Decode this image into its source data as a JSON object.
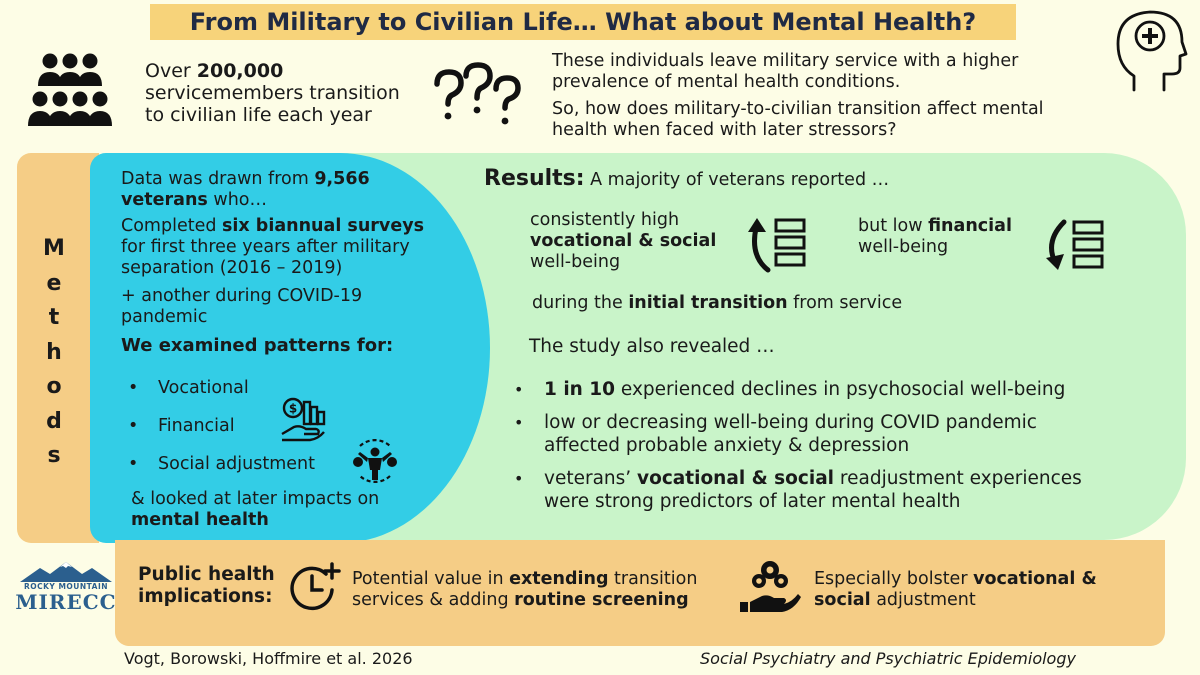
{
  "title": "From Military to Civilian Life… What about Mental Health?",
  "intro": {
    "left_pre": "Over ",
    "left_bold": "200,000",
    "left_rest_1": "servicemembers transition",
    "left_rest_2": "to civilian life each year",
    "right_p1_1": "These individuals leave military service with a higher",
    "right_p1_2": "prevalence of mental health conditions.",
    "right_p2_1": "So, how does military-to-civilian transition affect mental",
    "right_p2_2": "health when faced with later stressors?"
  },
  "methods": {
    "tab_label": "Methods",
    "letters": [
      "M",
      "e",
      "t",
      "h",
      "o",
      "d",
      "s"
    ],
    "p1_pre": "Data was drawn from ",
    "p1_bold_1": "9,566",
    "p1_bold_2": "veterans",
    "p1_post": " who…",
    "p2_pre": "Completed ",
    "p2_bold": "six biannual surveys",
    "p2_line2": "for first three years after military",
    "p2_line3": "separation (2016 – 2019)",
    "p3_line1": "+ another during COVID-19",
    "p3_line2": "pandemic",
    "patterns_heading": "We examined patterns for:",
    "patterns": [
      "Vocational",
      "Financial",
      "Social adjustment"
    ],
    "closing_line1": "& looked at later impacts on",
    "closing_bold": "mental health"
  },
  "results": {
    "heading_bold": "Results:",
    "heading_rest": " A majority of veterans reported …",
    "col1_line1": "consistently high",
    "col1_bold": "vocational & social",
    "col1_line3": "well-being",
    "col2_pre": "but low ",
    "col2_bold": "financial",
    "col2_line2": "well-being",
    "during_pre": "during the ",
    "during_bold": "initial transition",
    "during_post": " from service",
    "revealed": "The study also revealed …",
    "b1_bold": "1 in 10",
    "b1_rest": " experienced declines in psychosocial well-being",
    "b2_line1": "low or decreasing well-being during COVID pandemic",
    "b2_line2": "affected probable anxiety & depression",
    "b3_pre": "veterans’ ",
    "b3_bold": "vocational & social",
    "b3_post": " readjustment experiences",
    "b3_line2": "were strong predictors of later mental health"
  },
  "public_health": {
    "label_line1": "Public health",
    "label_line2": "implications:",
    "item1_pre": "Potential value in ",
    "item1_bold1": "extending",
    "item1_mid": " transition",
    "item1_line2_pre": "services & adding ",
    "item1_bold2": "routine screening",
    "item2_pre": "Especially bolster ",
    "item2_bold1": "vocational &",
    "item2_bold2": "social",
    "item2_post": " adjustment"
  },
  "logo": {
    "line1": "ROCKY MOUNTAIN",
    "line2": "MIRECC"
  },
  "citation": {
    "authors": "Vogt, Borowski, Hoffmire et al. 2026",
    "journal": "Social Psychiatry and Psychiatric Epidemiology"
  },
  "icons": [
    "people-group-icon",
    "question-marks-icon",
    "head-plus-icon",
    "arrow-up-list-icon",
    "arrow-down-list-icon",
    "money-hand-icon",
    "person-cycle-icon",
    "clock-plus-icon",
    "hand-gears-icon",
    "mountain-logo-icon"
  ],
  "colors": {
    "title_bg": "#f7d37a",
    "methods_blue": "#33cde6",
    "results_green": "#c9f4c9",
    "band_orange": "#f5cd86",
    "background": "#fdfde6",
    "logo_blue": "#2b5f8e"
  }
}
